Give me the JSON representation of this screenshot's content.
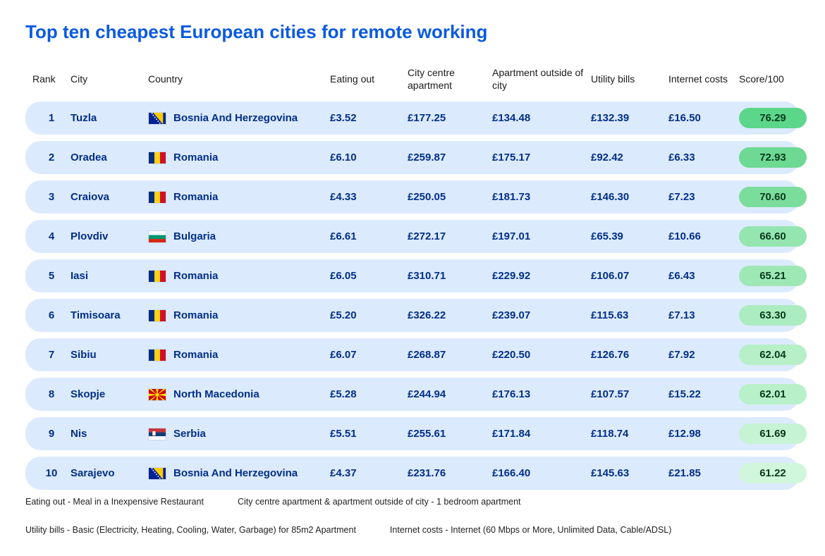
{
  "title": "Top ten cheapest European cities for remote working",
  "columns": [
    "Rank",
    "City",
    "Country",
    "Eating out",
    "City centre apartment",
    "Apartment outside of city",
    "Utility bills",
    "Internet costs",
    "Score/100"
  ],
  "score_color_scale": {
    "max": "#5cd68a",
    "min": "#d7f7dd"
  },
  "row_bg": "#dceafe",
  "title_color": "#0a5ae0",
  "text_color": "#002f87",
  "rows": [
    {
      "rank": "1",
      "city": "Tuzla",
      "country": "Bosnia And Herzegovina",
      "flag": "bih",
      "eating_out": "£3.52",
      "city_apt": "£177.25",
      "out_apt": "£134.48",
      "utility": "£132.39",
      "internet": "£16.50",
      "score": "76.29",
      "score_bg": "#5cd68a"
    },
    {
      "rank": "2",
      "city": "Oradea",
      "country": "Romania",
      "flag": "rou",
      "eating_out": "£6.10",
      "city_apt": "£259.87",
      "out_apt": "£175.17",
      "utility": "£92.42",
      "internet": "£6.33",
      "score": "72.93",
      "score_bg": "#6dd993"
    },
    {
      "rank": "3",
      "city": "Craiova",
      "country": "Romania",
      "flag": "rou",
      "eating_out": "£4.33",
      "city_apt": "£250.05",
      "out_apt": "£181.73",
      "utility": "£146.30",
      "internet": "£7.23",
      "score": "70.60",
      "score_bg": "#7bdd9c"
    },
    {
      "rank": "4",
      "city": "Plovdiv",
      "country": "Bulgaria",
      "flag": "bgr",
      "eating_out": "£6.61",
      "city_apt": "£272.17",
      "out_apt": "£197.01",
      "utility": "£65.39",
      "internet": "£10.66",
      "score": "66.60",
      "score_bg": "#94e5af"
    },
    {
      "rank": "5",
      "city": "Iasi",
      "country": "Romania",
      "flag": "rou",
      "eating_out": "£6.05",
      "city_apt": "£310.71",
      "out_apt": "£229.92",
      "utility": "£106.07",
      "internet": "£6.43",
      "score": "65.21",
      "score_bg": "#9ee8b6"
    },
    {
      "rank": "6",
      "city": "Timisoara",
      "country": "Romania",
      "flag": "rou",
      "eating_out": "£5.20",
      "city_apt": "£326.22",
      "out_apt": "£239.07",
      "utility": "£115.63",
      "internet": "£7.13",
      "score": "63.30",
      "score_bg": "#abecc0"
    },
    {
      "rank": "7",
      "city": "Sibiu",
      "country": "Romania",
      "flag": "rou",
      "eating_out": "£6.07",
      "city_apt": "£268.87",
      "out_apt": "£220.50",
      "utility": "£126.76",
      "internet": "£7.92",
      "score": "62.04",
      "score_bg": "#b6efc8"
    },
    {
      "rank": "8",
      "city": "Skopje",
      "country": "North Macedonia",
      "flag": "mkd",
      "eating_out": "£5.28",
      "city_apt": "£244.94",
      "out_apt": "£176.13",
      "utility": "£107.57",
      "internet": "£15.22",
      "score": "62.01",
      "score_bg": "#b8f0c9"
    },
    {
      "rank": "9",
      "city": "Nis",
      "country": "Serbia",
      "flag": "srb",
      "eating_out": "£5.51",
      "city_apt": "£255.61",
      "out_apt": "£171.84",
      "utility": "£118.74",
      "internet": "£12.98",
      "score": "61.69",
      "score_bg": "#c5f3d3"
    },
    {
      "rank": "10",
      "city": "Sarajevo",
      "country": "Bosnia And Herzegovina",
      "flag": "bih",
      "eating_out": "£4.37",
      "city_apt": "£231.76",
      "out_apt": "£166.40",
      "utility": "£145.63",
      "internet": "£21.85",
      "score": "61.22",
      "score_bg": "#d0f6db"
    }
  ],
  "footnotes": [
    "Eating out - Meal in a Inexpensive Restaurant",
    "City centre apartment & apartment outside of city - 1 bedroom apartment",
    "Utility bills - Basic (Electricity, Heating, Cooling, Water, Garbage) for 85m2 Apartment",
    "Internet costs - Internet (60 Mbps or More, Unlimited Data, Cable/ADSL)"
  ],
  "flags": {
    "bih": "<svg viewBox='0 0 26 18'><rect width='26' height='18' fill='#002395'/><polygon points='7,0 22,0 22,18' fill='#fecb00'/><g fill='#fff'><circle cx='5' cy='1' r='1'/><circle cx='7' cy='4' r='1'/><circle cx='9.5' cy='7' r='1'/><circle cx='12' cy='10' r='1'/><circle cx='14.5' cy='13' r='1'/><circle cx='17' cy='16' r='1'/></g></svg>",
    "rou": "<svg viewBox='0 0 26 18'><rect width='8.67' height='18' x='0' fill='#002b7f'/><rect width='8.67' height='18' x='8.67' fill='#fcd116'/><rect width='8.67' height='18' x='17.33' fill='#ce1126'/></svg>",
    "bgr": "<svg viewBox='0 0 26 18'><rect width='26' height='6' y='0' fill='#fff'/><rect width='26' height='6' y='6' fill='#00966e'/><rect width='26' height='6' y='12' fill='#d62612'/></svg>",
    "mkd": "<svg viewBox='0 0 26 18'><rect width='26' height='18' fill='#d20000'/><g fill='#ffe600'><circle cx='13' cy='9' r='2.6'/><polygon points='0,0 4,0 13,9'/><polygon points='22,0 26,0 13,9'/><polygon points='0,18 4,18 13,9'/><polygon points='22,18 26,18 13,9'/><polygon points='0,7 0,11 13,9'/><polygon points='26,7 26,11 13,9'/><polygon points='11,0 15,0 13,9'/><polygon points='11,18 15,18 13,9'/></g></svg>",
    "srb": "<svg viewBox='0 0 26 18'><rect width='26' height='6' y='0' fill='#c6363c'/><rect width='26' height='6' y='6' fill='#0c4076'/><rect width='26' height='6' y='12' fill='#fff'/><rect x='5.5' y='4' width='5' height='7' rx='1' fill='#fff' stroke='#c6363c' stroke-width='0.5'/></svg>"
  }
}
